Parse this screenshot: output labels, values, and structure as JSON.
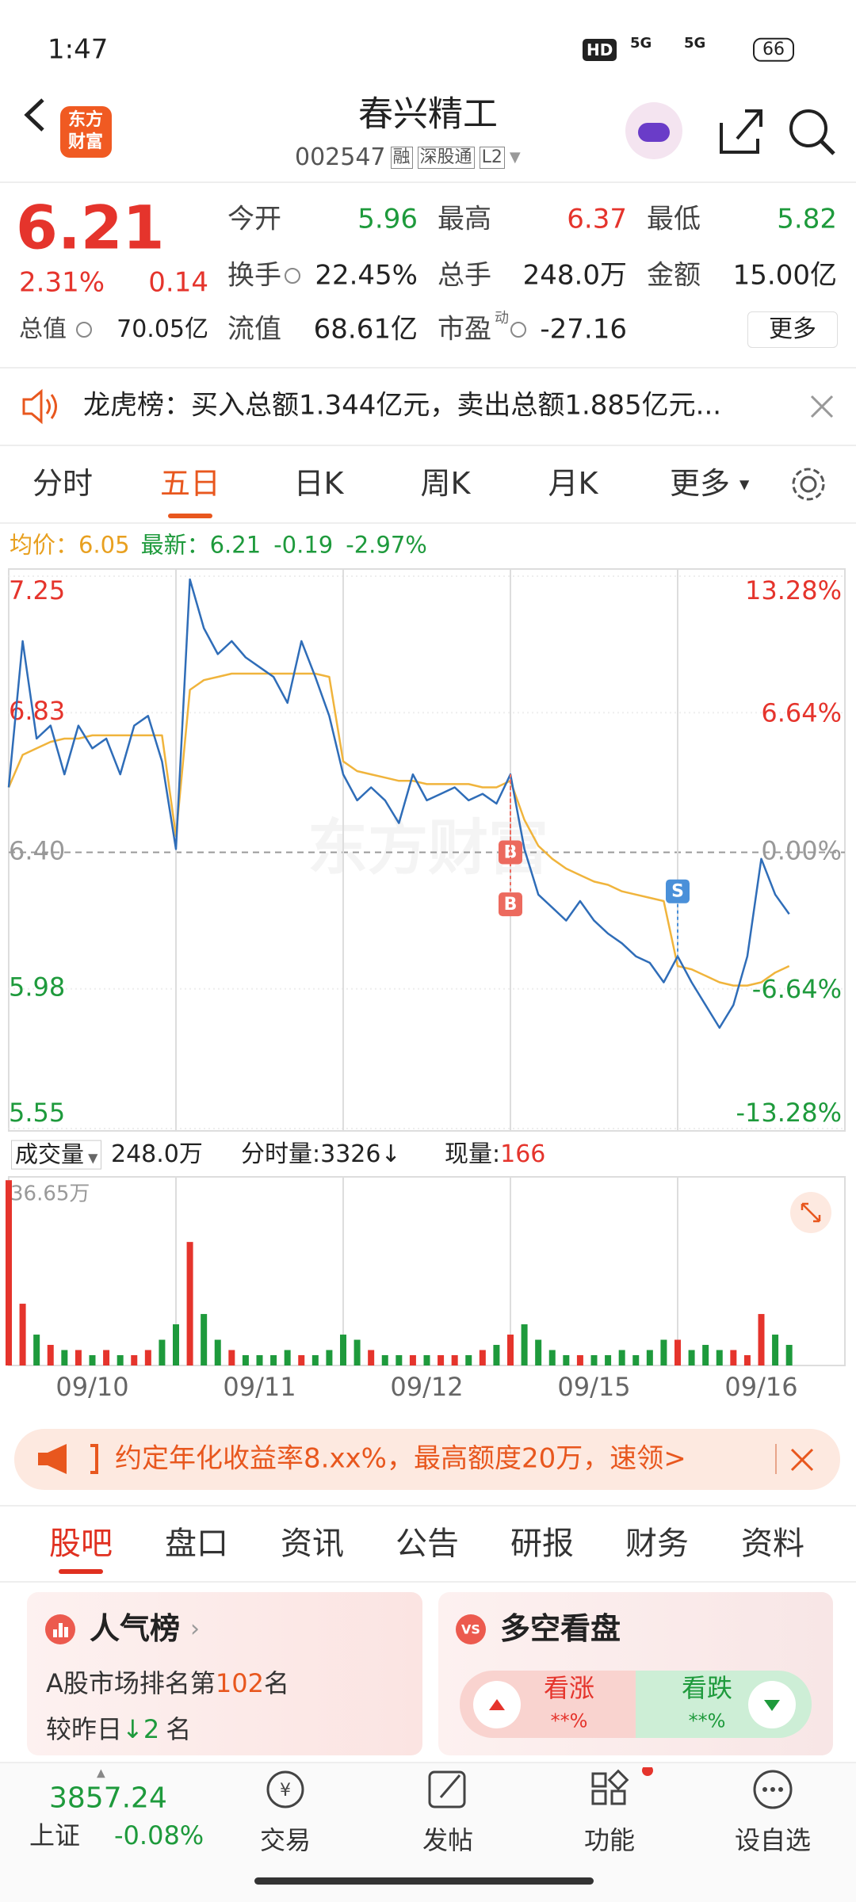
{
  "status_bar": {
    "time": "1:47",
    "hd": "HD",
    "signals": [
      "5G",
      "5G"
    ],
    "battery": "66"
  },
  "header": {
    "logo": [
      "东方",
      "财富"
    ],
    "title": "春兴精工",
    "code": "002547",
    "tags": [
      "融",
      "深股通",
      "L2"
    ]
  },
  "colors": {
    "up": "#e5342c",
    "down": "#1e9a3c",
    "flat": "#999999",
    "accent": "#e8571e"
  },
  "quote": {
    "price": "6.21",
    "change_pct": "2.31%",
    "change": "0.14",
    "more": "更多",
    "rows": [
      [
        {
          "label": "今开",
          "value": "5.96",
          "color": "#1e9a3c"
        },
        {
          "label": "最高",
          "value": "6.37",
          "color": "#e5342c"
        },
        {
          "label": "最低",
          "value": "5.82",
          "color": "#1e9a3c"
        }
      ],
      [
        {
          "label": "换手",
          "value": "22.45%",
          "color": "#222222"
        },
        {
          "label": "总手",
          "value": "248.0万",
          "color": "#222222"
        },
        {
          "label": "金额",
          "value": "15.00亿",
          "color": "#222222"
        }
      ],
      [
        {
          "label": "总值",
          "value": "70.05亿",
          "color": "#222222"
        },
        {
          "label": "流值",
          "value": "68.61亿",
          "color": "#222222"
        },
        {
          "label": "市盈",
          "sup": "动",
          "value": "-27.16",
          "color": "#222222"
        }
      ]
    ]
  },
  "notice": {
    "text": "龙虎榜：买入总额1.344亿元，卖出总额1.885亿元..."
  },
  "chart_tabs": {
    "items": [
      "分时",
      "五日",
      "日K",
      "周K",
      "月K",
      "更多"
    ],
    "active": 1
  },
  "chart_info": {
    "avg_label": "均价：",
    "avg": "6.05",
    "latest_label": "最新：",
    "latest": "6.21",
    "change": "-0.19",
    "change_pct": "-2.97%"
  },
  "chart_data": [
    {
      "type": "line",
      "watermark": "东方财富",
      "x": [
        0,
        1,
        2,
        3,
        4,
        5,
        6,
        7,
        8,
        9,
        10,
        11,
        12,
        13,
        14,
        15,
        16,
        17,
        18,
        19,
        20,
        21,
        22,
        23,
        24,
        25,
        26,
        27,
        28,
        29,
        30,
        31,
        32,
        33,
        34,
        35,
        36,
        37,
        38,
        39,
        40,
        41,
        42,
        43,
        44,
        45,
        46,
        47,
        48,
        49,
        50,
        51,
        52,
        53,
        54,
        55,
        56
      ],
      "series": [
        {
          "color": "#2f6db8",
          "values": [
            6.6,
            7.05,
            6.75,
            6.79,
            6.64,
            6.79,
            6.72,
            6.75,
            6.64,
            6.79,
            6.82,
            6.68,
            6.41,
            7.24,
            7.09,
            7.01,
            7.05,
            7.0,
            6.97,
            6.94,
            6.86,
            7.05,
            6.94,
            6.82,
            6.64,
            6.56,
            6.6,
            6.56,
            6.49,
            6.64,
            6.56,
            6.58,
            6.6,
            6.56,
            6.58,
            6.55,
            6.64,
            6.41,
            6.27,
            6.23,
            6.19,
            6.25,
            6.19,
            6.15,
            6.12,
            6.08,
            6.06,
            6.0,
            6.08,
            6.0,
            5.93,
            5.86,
            5.93,
            6.08,
            6.38,
            6.27,
            6.21
          ]
        },
        {
          "color": "#f0b43c",
          "values": [
            6.6,
            6.7,
            6.72,
            6.74,
            6.75,
            6.75,
            6.76,
            6.76,
            6.76,
            6.76,
            6.76,
            6.76,
            6.45,
            6.9,
            6.93,
            6.94,
            6.95,
            6.95,
            6.95,
            6.95,
            6.95,
            6.95,
            6.95,
            6.94,
            6.68,
            6.65,
            6.64,
            6.63,
            6.62,
            6.62,
            6.61,
            6.61,
            6.61,
            6.61,
            6.6,
            6.6,
            6.62,
            6.5,
            6.42,
            6.38,
            6.35,
            6.33,
            6.31,
            6.3,
            6.28,
            6.27,
            6.26,
            6.25,
            6.05,
            6.04,
            6.02,
            6.0,
            5.99,
            5.99,
            6.0,
            6.03,
            6.05
          ]
        }
      ],
      "xlim": [
        0,
        60
      ],
      "ylim": [
        5.55,
        7.25
      ],
      "yticks": [
        7.25,
        6.83,
        {
          "value": 6.4,
          "label": "6.40"
        },
        5.98,
        5.55
      ],
      "y2lim": [
        -13.28,
        13.28
      ],
      "y2ticks": [
        {
          "value": 13.28,
          "label": "13.28%"
        },
        {
          "value": 6.64,
          "label": "6.64%"
        },
        {
          "value": 0,
          "label": "0.00%"
        },
        {
          "value": -6.64,
          "label": "-6.64%"
        },
        {
          "value": -13.28,
          "label": "-13.28%"
        }
      ],
      "markers": [
        {
          "label": "B",
          "x": 36,
          "price": 6.4,
          "color": "#ec6a5e"
        },
        {
          "label": "B",
          "x": 36,
          "price": 6.24,
          "color": "#ec6a5e"
        },
        {
          "label": "S",
          "x": 48,
          "price": 6.28,
          "color": "#4a90d9"
        }
      ]
    },
    {
      "type": "bar",
      "x": [
        0,
        1,
        2,
        3,
        4,
        5,
        6,
        7,
        8,
        9,
        10,
        11,
        12,
        13,
        14,
        15,
        16,
        17,
        18,
        19,
        20,
        21,
        22,
        23,
        24,
        25,
        26,
        27,
        28,
        29,
        30,
        31,
        32,
        33,
        34,
        35,
        36,
        37,
        38,
        39,
        40,
        41,
        42,
        43,
        44,
        45,
        46,
        47,
        48,
        49,
        50,
        51,
        52,
        53,
        54,
        55,
        56
      ],
      "values": [
        36,
        12,
        6,
        4,
        3,
        3,
        2,
        3,
        2,
        2,
        3,
        5,
        8,
        24,
        10,
        5,
        3,
        2,
        2,
        2,
        3,
        2,
        2,
        3,
        6,
        5,
        3,
        2,
        2,
        2,
        2,
        2,
        2,
        2,
        3,
        4,
        6,
        8,
        5,
        3,
        2,
        2,
        2,
        2,
        3,
        2,
        3,
        5,
        5,
        3,
        4,
        3,
        3,
        2,
        10,
        6,
        4
      ],
      "xlim": [
        0,
        60
      ],
      "ylim": [
        0,
        36.65
      ],
      "yticks": [
        {
          "value": 36.65,
          "label": "36.65万"
        }
      ],
      "xticks": [
        {
          "value": 6,
          "label": "09/10"
        },
        {
          "value": 18,
          "label": "09/11"
        },
        {
          "value": 30,
          "label": "09/12"
        },
        {
          "value": 42,
          "label": "09/15"
        },
        {
          "value": 54,
          "label": "09/16"
        }
      ]
    }
  ],
  "volume_info": {
    "label": "成交量",
    "total": "248.0万",
    "tick_label": "分时量:",
    "tick": "3326",
    "tick_arrow": "↓",
    "now_label": "现量:",
    "now": "166"
  },
  "ad": {
    "text": "约定年化收益率8.xx%，最高额度20万，速领>"
  },
  "content_tabs": {
    "items": [
      "股吧",
      "盘口",
      "资讯",
      "公告",
      "研报",
      "财务",
      "资料"
    ],
    "active": 0
  },
  "popularity": {
    "title": "人气榜",
    "rank_prefix": "A股市场排名第",
    "rank": "102",
    "rank_suffix": "名",
    "change_prefix": "较昨日",
    "change": "2",
    "change_suffix": "名"
  },
  "vote": {
    "title": "多空看盘",
    "up": "看涨",
    "up_pct": "**%",
    "down": "看跌",
    "down_pct": "**%"
  },
  "bottom_nav": {
    "index_value": "3857.24",
    "index_name": "上证",
    "index_change": "-0.08%",
    "items": [
      "交易",
      "发帖",
      "功能",
      "设自选"
    ]
  }
}
